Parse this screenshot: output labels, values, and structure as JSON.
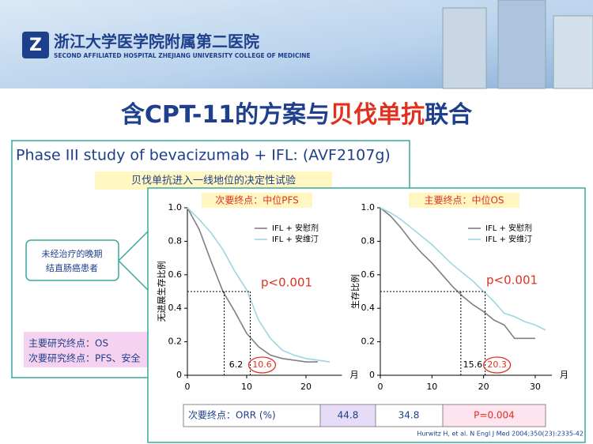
{
  "header": {
    "name_cn": "浙江大学医学院附属第二医院",
    "name_en": "SECOND AFFILIATED HOSPITAL ZHEJIANG UNIVERSITY COLLEGE OF MEDICINE"
  },
  "title": {
    "prefix": "含CPT-11的方案与",
    "highlight": "贝伐单抗",
    "suffix": "联合"
  },
  "study": {
    "title": "Phase III study of bevacizumab + IFL: (AVF2107g)",
    "subtitle": "贝伐单抗进入一线地位的决定性试验",
    "population": [
      "未经治疗的晚期",
      "结直肠癌患者"
    ],
    "endpoints": [
      "主要研究终点：OS",
      "次要研究终点：PFS、安全"
    ]
  },
  "chart_data": [
    {
      "type": "line",
      "title": "次要终点：中位PFS",
      "ylabel": "无进展生存比例",
      "xlabel": "月",
      "x": [
        0,
        2,
        4,
        6,
        8,
        10,
        12,
        14,
        16,
        18,
        20,
        22,
        24
      ],
      "xlim": [
        0,
        25
      ],
      "xticks": [
        0,
        10,
        20
      ],
      "ylim": [
        0,
        1
      ],
      "yticks": [
        0,
        0.2,
        0.4,
        0.6,
        0.8,
        {
          "value": 1,
          "label": "1.0"
        }
      ],
      "series": [
        {
          "name": "IFL + 安慰剂",
          "color": "#808080",
          "values": [
            1,
            0.87,
            0.68,
            0.5,
            0.38,
            0.25,
            0.17,
            0.12,
            0.1,
            0.09,
            0.08,
            0.08,
            null
          ]
        },
        {
          "name": "IFL + 安维汀",
          "color": "#9fd6e0",
          "values": [
            1,
            0.93,
            0.85,
            0.75,
            0.62,
            0.51,
            0.33,
            0.22,
            0.15,
            0.12,
            0.1,
            0.09,
            0.08
          ]
        }
      ],
      "annotation": "p<0.001",
      "medians": [
        6.2,
        10.6
      ]
    },
    {
      "type": "line",
      "title": "主要终点：中位OS",
      "ylabel": "生存比例",
      "xlabel": "月",
      "x": [
        0,
        2,
        4,
        6,
        8,
        10,
        12,
        14,
        16,
        18,
        20,
        22,
        24,
        26,
        28,
        30,
        32
      ],
      "xlim": [
        0,
        32
      ],
      "xticks": [
        0,
        10,
        20,
        30
      ],
      "ylim": [
        0,
        1
      ],
      "yticks": [
        0,
        0.2,
        0.4,
        0.6,
        0.8,
        {
          "value": 1,
          "label": "1.0"
        }
      ],
      "series": [
        {
          "name": "IFL + 安慰剂",
          "color": "#808080",
          "values": [
            1,
            0.95,
            0.88,
            0.8,
            0.73,
            0.67,
            0.6,
            0.53,
            0.47,
            0.42,
            0.38,
            0.33,
            0.3,
            0.22,
            0.22,
            0.22,
            null
          ]
        },
        {
          "name": "IFL + 安维汀",
          "color": "#9fd6e0",
          "values": [
            1,
            0.97,
            0.93,
            0.88,
            0.83,
            0.78,
            0.72,
            0.66,
            0.61,
            0.56,
            0.5,
            0.44,
            0.37,
            0.35,
            0.32,
            0.3,
            0.27
          ]
        }
      ],
      "annotation": "p<0.001",
      "medians": [
        15.6,
        20.3
      ]
    }
  ],
  "orr_table": {
    "label": "次要终点：ORR (%)",
    "cells": [
      44.8,
      34.8,
      "P=0.004"
    ]
  },
  "citation": "Hurwitz H, et al. N Engl J Med 2004;350(23):2335-42"
}
